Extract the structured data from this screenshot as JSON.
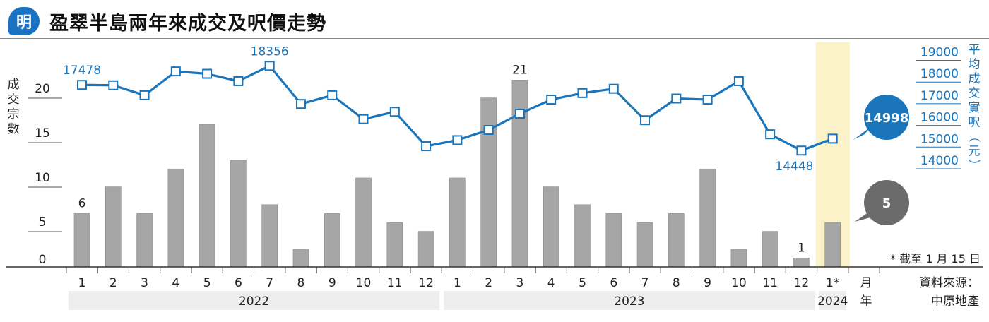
{
  "header": {
    "logo_text": "明",
    "title": "盈翠半島兩年來成交及呎價走勢"
  },
  "colors": {
    "bar": "#a6a6a6",
    "line": "#1b75bb",
    "highlight": "#fcf2c9",
    "callout_blue": "#1b75bb",
    "callout_grey": "#6b6b6b",
    "year_band": "#eeeeee"
  },
  "chart_data": {
    "type": "bar+line",
    "title": "盈翠半島兩年來成交及呎價走勢",
    "ylabel_left": "成交宗數",
    "ylabel_right": "平均成交實呎（元）",
    "xlabel_month_unit": "月",
    "xlabel_year_unit": "年",
    "ylim_left": [
      0,
      20
    ],
    "yticks_left": [
      "0",
      "5",
      "10",
      "15",
      "20"
    ],
    "ylim_right": [
      14000,
      19000
    ],
    "yticks_right": [
      "14000",
      "15000",
      "16000",
      "17000",
      "18000",
      "19000"
    ],
    "categories": [
      "1",
      "2",
      "3",
      "4",
      "5",
      "6",
      "7",
      "8",
      "9",
      "10",
      "11",
      "12",
      "1",
      "2",
      "3",
      "4",
      "5",
      "6",
      "7",
      "8",
      "9",
      "10",
      "11",
      "12",
      "1*"
    ],
    "years": [
      {
        "label": "2022",
        "start": 0,
        "end": 11
      },
      {
        "label": "2023",
        "start": 12,
        "end": 23
      },
      {
        "label": "2024",
        "start": 24,
        "end": 24
      }
    ],
    "series": [
      {
        "name": "成交宗數",
        "type": "bar",
        "axis": "left",
        "values": [
          6,
          9,
          6,
          11,
          16,
          12,
          7,
          2,
          6,
          10,
          5,
          4,
          10,
          19,
          21,
          9,
          7,
          6,
          5,
          6,
          11,
          2,
          4,
          1,
          5
        ]
      },
      {
        "name": "平均成交實呎（元）",
        "type": "line",
        "axis": "right",
        "values": [
          17478,
          17460,
          17000,
          18100,
          17990,
          17650,
          18356,
          16600,
          17000,
          15900,
          16240,
          14650,
          14930,
          15400,
          16150,
          16800,
          17100,
          17300,
          15850,
          16850,
          16800,
          17650,
          15200,
          14448,
          14998
        ]
      }
    ],
    "bar_labels": [
      {
        "index": 0,
        "text": "6"
      },
      {
        "index": 14,
        "text": "21"
      },
      {
        "index": 23,
        "text": "1"
      }
    ],
    "line_labels": [
      {
        "index": 0,
        "text": "17478"
      },
      {
        "index": 6,
        "text": "18356"
      },
      {
        "index": 23,
        "text": "14448"
      }
    ],
    "callouts": {
      "price": "14998",
      "deals": "5"
    },
    "highlight_index": 24,
    "footnote": "* 截至 1 月 15 日",
    "source_label": "資料來源：",
    "source_name": "中原地產"
  }
}
